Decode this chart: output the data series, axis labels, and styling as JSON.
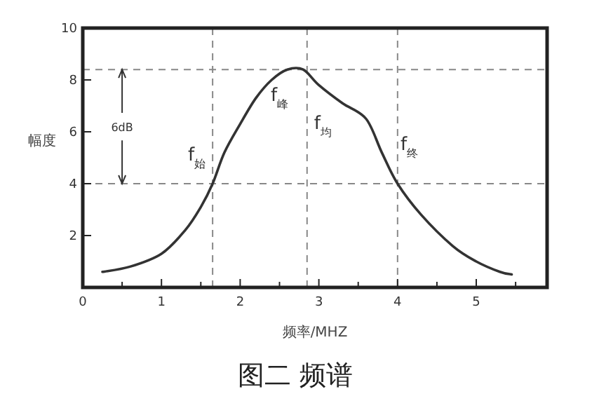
{
  "chart_data": {
    "type": "line",
    "xlabel": "频率/MHZ",
    "ylabel": "幅度",
    "x": [
      0.25,
      0.6,
      1.0,
      1.3,
      1.5,
      1.65,
      1.8,
      2.0,
      2.2,
      2.4,
      2.6,
      2.8,
      3.0,
      3.3,
      3.6,
      3.8,
      4.0,
      4.3,
      4.7,
      5.0,
      5.3,
      5.45
    ],
    "series": [
      {
        "color": "#333333",
        "values": [
          0.6,
          0.8,
          1.3,
          2.2,
          3.1,
          4.0,
          5.2,
          6.3,
          7.3,
          8.0,
          8.4,
          8.4,
          7.8,
          7.1,
          6.5,
          5.2,
          4.0,
          2.8,
          1.6,
          1.0,
          0.6,
          0.5
        ]
      }
    ],
    "xlim": [
      0,
      5.9
    ],
    "ylim": [
      0,
      10
    ],
    "xticks": [
      0,
      {
        "value": 0.5,
        "label": null
      },
      1,
      {
        "value": 1.5,
        "label": null
      },
      2,
      {
        "value": 2.5,
        "label": null
      },
      3,
      {
        "value": 3.5,
        "label": null
      },
      4,
      {
        "value": 4.5,
        "label": null
      },
      5,
      {
        "value": 5.5,
        "label": null
      }
    ],
    "yticks": [
      2,
      4,
      6,
      8,
      10
    ],
    "ref_lines": [
      {
        "axis": "y",
        "value": 8.4,
        "line_style": "dashed"
      },
      {
        "axis": "y",
        "value": 4,
        "line_style": "dashed"
      },
      {
        "axis": "x",
        "value": 1.65,
        "line_style": "dashed"
      },
      {
        "axis": "x",
        "value": 2.85,
        "line_style": "dashed"
      },
      {
        "axis": "x",
        "value": 4.0,
        "line_style": "dashed"
      }
    ],
    "annotations": [
      "f$_{始}$",
      "f$_{峰}$",
      "f$_{均}$",
      "f$_{终}$",
      {
        "text": "6dB",
        "x": 0.5,
        "y": 8.4
      },
      "图二 频谱"
    ],
    "grid": false,
    "marker": "none",
    "line_style": "solid"
  }
}
